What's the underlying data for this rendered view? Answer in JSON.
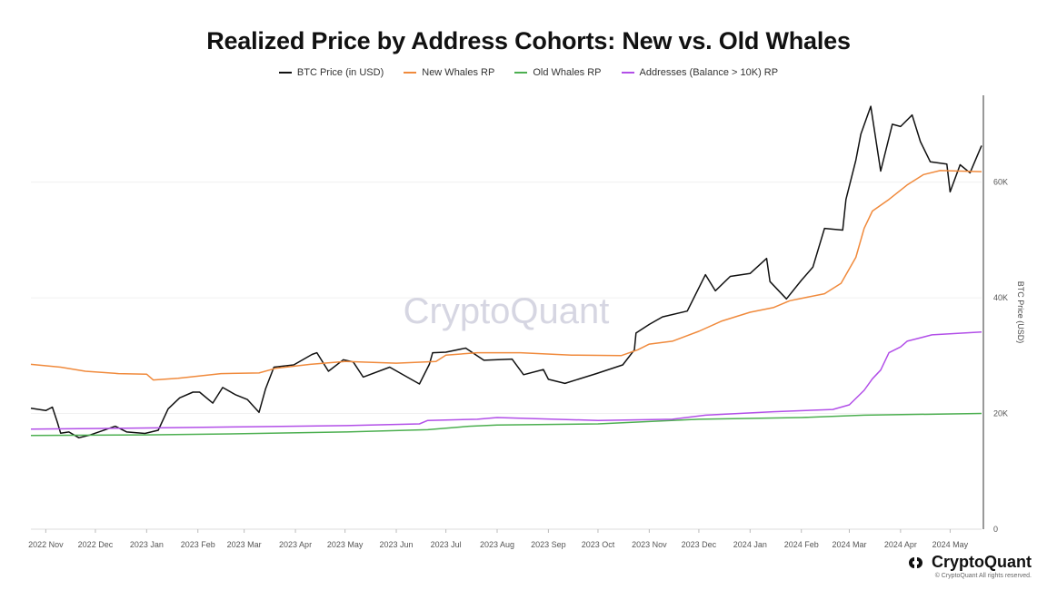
{
  "chart_data": {
    "type": "line",
    "title": "Realized Price by Address Cohorts: New vs. Old Whales",
    "ylabel": "BTC Price (USD)",
    "yaxis_side": "right",
    "ylim": [
      0,
      75000
    ],
    "yticks": [
      0,
      20000,
      40000,
      60000
    ],
    "ytick_labels": [
      "0",
      "20K",
      "40K",
      "60K"
    ],
    "xlim": [
      "2022-10-23",
      "2024-05-20"
    ],
    "xticks": [
      "2022-11-01",
      "2022-12-01",
      "2023-01-01",
      "2023-02-01",
      "2023-03-01",
      "2023-04-01",
      "2023-05-01",
      "2023-06-01",
      "2023-07-01",
      "2023-08-01",
      "2023-09-01",
      "2023-10-01",
      "2023-11-01",
      "2023-12-01",
      "2024-01-01",
      "2024-02-01",
      "2024-03-01",
      "2024-04-01",
      "2024-05-01"
    ],
    "xtick_labels": [
      "2022 Nov",
      "2022 Dec",
      "2023 Jan",
      "2023 Feb",
      "2023 Mar",
      "2023 Apr",
      "2023 May",
      "2023 Jun",
      "2023 Jul",
      "2023 Aug",
      "2023 Sep",
      "2023 Oct",
      "2023 Nov",
      "2023 Dec",
      "2024 Jan",
      "2024 Feb",
      "2024 Mar",
      "2024 Apr",
      "2024 May"
    ],
    "grid": true,
    "legend": "top-center",
    "series": [
      {
        "name": "BTC Price (in USD)",
        "color": "#111111",
        "points": [
          [
            "2022-10-23",
            20900
          ],
          [
            "2022-11-01",
            20500
          ],
          [
            "2022-11-05",
            21100
          ],
          [
            "2022-11-08",
            18500
          ],
          [
            "2022-11-10",
            16600
          ],
          [
            "2022-11-15",
            16800
          ],
          [
            "2022-11-21",
            15800
          ],
          [
            "2022-11-28",
            16300
          ],
          [
            "2022-12-05",
            17000
          ],
          [
            "2022-12-13",
            17800
          ],
          [
            "2022-12-20",
            16800
          ],
          [
            "2022-12-31",
            16550
          ],
          [
            "2023-01-08",
            17100
          ],
          [
            "2023-01-14",
            20800
          ],
          [
            "2023-01-21",
            22700
          ],
          [
            "2023-01-29",
            23700
          ],
          [
            "2023-02-02",
            23700
          ],
          [
            "2023-02-10",
            21800
          ],
          [
            "2023-02-16",
            24500
          ],
          [
            "2023-02-24",
            23200
          ],
          [
            "2023-03-03",
            22400
          ],
          [
            "2023-03-10",
            20200
          ],
          [
            "2023-03-14",
            24300
          ],
          [
            "2023-03-19",
            28000
          ],
          [
            "2023-03-31",
            28400
          ],
          [
            "2023-04-11",
            30200
          ],
          [
            "2023-04-14",
            30500
          ],
          [
            "2023-04-21",
            27300
          ],
          [
            "2023-04-30",
            29300
          ],
          [
            "2023-05-06",
            28900
          ],
          [
            "2023-05-12",
            26300
          ],
          [
            "2023-05-28",
            28000
          ],
          [
            "2023-06-10",
            25900
          ],
          [
            "2023-06-15",
            25100
          ],
          [
            "2023-06-21",
            28500
          ],
          [
            "2023-06-23",
            30500
          ],
          [
            "2023-07-01",
            30600
          ],
          [
            "2023-07-13",
            31300
          ],
          [
            "2023-07-24",
            29200
          ],
          [
            "2023-08-10",
            29400
          ],
          [
            "2023-08-17",
            26700
          ],
          [
            "2023-08-29",
            27600
          ],
          [
            "2023-09-01",
            25900
          ],
          [
            "2023-09-11",
            25200
          ],
          [
            "2023-09-30",
            26900
          ],
          [
            "2023-10-16",
            28400
          ],
          [
            "2023-10-23",
            31000
          ],
          [
            "2023-10-24",
            33900
          ],
          [
            "2023-11-01",
            35400
          ],
          [
            "2023-11-09",
            36700
          ],
          [
            "2023-11-24",
            37700
          ],
          [
            "2023-12-05",
            44000
          ],
          [
            "2023-12-11",
            41200
          ],
          [
            "2023-12-20",
            43700
          ],
          [
            "2024-01-01",
            44200
          ],
          [
            "2024-01-11",
            46800
          ],
          [
            "2024-01-13",
            42800
          ],
          [
            "2024-01-23",
            39800
          ],
          [
            "2024-02-01",
            43000
          ],
          [
            "2024-02-08",
            45300
          ],
          [
            "2024-02-15",
            52000
          ],
          [
            "2024-02-26",
            51700
          ],
          [
            "2024-02-28",
            57000
          ],
          [
            "2024-03-05",
            63800
          ],
          [
            "2024-03-08",
            68300
          ],
          [
            "2024-03-14",
            73100
          ],
          [
            "2024-03-20",
            61900
          ],
          [
            "2024-03-27",
            70000
          ],
          [
            "2024-04-01",
            69600
          ],
          [
            "2024-04-08",
            71600
          ],
          [
            "2024-04-13",
            67000
          ],
          [
            "2024-04-19",
            63500
          ],
          [
            "2024-04-29",
            63100
          ],
          [
            "2024-05-01",
            58300
          ],
          [
            "2024-05-07",
            63000
          ],
          [
            "2024-05-13",
            61600
          ],
          [
            "2024-05-20",
            66300
          ]
        ]
      },
      {
        "name": "New Whales RP",
        "color": "#f08a3c",
        "points": [
          [
            "2022-10-23",
            28500
          ],
          [
            "2022-11-10",
            28000
          ],
          [
            "2022-11-25",
            27300
          ],
          [
            "2022-12-15",
            26900
          ],
          [
            "2023-01-01",
            26800
          ],
          [
            "2023-01-05",
            25800
          ],
          [
            "2023-01-20",
            26100
          ],
          [
            "2023-02-15",
            26900
          ],
          [
            "2023-03-10",
            27000
          ],
          [
            "2023-03-20",
            27800
          ],
          [
            "2023-04-10",
            28500
          ],
          [
            "2023-05-01",
            29000
          ],
          [
            "2023-06-01",
            28700
          ],
          [
            "2023-06-25",
            29000
          ],
          [
            "2023-07-01",
            30100
          ],
          [
            "2023-07-20",
            30500
          ],
          [
            "2023-08-15",
            30500
          ],
          [
            "2023-09-15",
            30100
          ],
          [
            "2023-10-15",
            30000
          ],
          [
            "2023-10-25",
            31000
          ],
          [
            "2023-11-01",
            32000
          ],
          [
            "2023-11-15",
            32500
          ],
          [
            "2023-12-01",
            34200
          ],
          [
            "2023-12-15",
            36000
          ],
          [
            "2024-01-01",
            37500
          ],
          [
            "2024-01-15",
            38300
          ],
          [
            "2024-01-25",
            39500
          ],
          [
            "2024-02-15",
            40700
          ],
          [
            "2024-02-25",
            42500
          ],
          [
            "2024-03-05",
            47000
          ],
          [
            "2024-03-10",
            52000
          ],
          [
            "2024-03-15",
            55000
          ],
          [
            "2024-03-25",
            57000
          ],
          [
            "2024-04-05",
            59500
          ],
          [
            "2024-04-15",
            61300
          ],
          [
            "2024-04-25",
            62000
          ],
          [
            "2024-05-20",
            61800
          ]
        ]
      },
      {
        "name": "Old Whales RP",
        "color": "#4caf50",
        "points": [
          [
            "2022-10-23",
            16200
          ],
          [
            "2023-01-01",
            16300
          ],
          [
            "2023-03-01",
            16500
          ],
          [
            "2023-05-01",
            16800
          ],
          [
            "2023-06-20",
            17200
          ],
          [
            "2023-07-15",
            17800
          ],
          [
            "2023-08-01",
            18000
          ],
          [
            "2023-10-01",
            18200
          ],
          [
            "2023-12-01",
            19000
          ],
          [
            "2024-02-01",
            19300
          ],
          [
            "2024-03-10",
            19700
          ],
          [
            "2024-05-20",
            20000
          ]
        ]
      },
      {
        "name": "Addresses (Balance > 10K) RP",
        "color": "#b24fe8",
        "points": [
          [
            "2022-10-23",
            17300
          ],
          [
            "2023-01-01",
            17500
          ],
          [
            "2023-03-01",
            17700
          ],
          [
            "2023-05-01",
            17900
          ],
          [
            "2023-06-15",
            18200
          ],
          [
            "2023-06-20",
            18800
          ],
          [
            "2023-07-20",
            19000
          ],
          [
            "2023-08-01",
            19300
          ],
          [
            "2023-10-01",
            18800
          ],
          [
            "2023-11-15",
            19000
          ],
          [
            "2023-12-05",
            19700
          ],
          [
            "2024-01-15",
            20300
          ],
          [
            "2024-02-20",
            20700
          ],
          [
            "2024-03-01",
            21500
          ],
          [
            "2024-03-10",
            24000
          ],
          [
            "2024-03-15",
            26000
          ],
          [
            "2024-03-20",
            27500
          ],
          [
            "2024-03-25",
            30500
          ],
          [
            "2024-04-01",
            31500
          ],
          [
            "2024-04-05",
            32500
          ],
          [
            "2024-04-20",
            33600
          ],
          [
            "2024-05-20",
            34100
          ]
        ]
      }
    ]
  },
  "watermark": "CryptoQuant",
  "brand": {
    "name": "CryptoQuant",
    "copyright": "© CryptoQuant All rights reserved."
  }
}
